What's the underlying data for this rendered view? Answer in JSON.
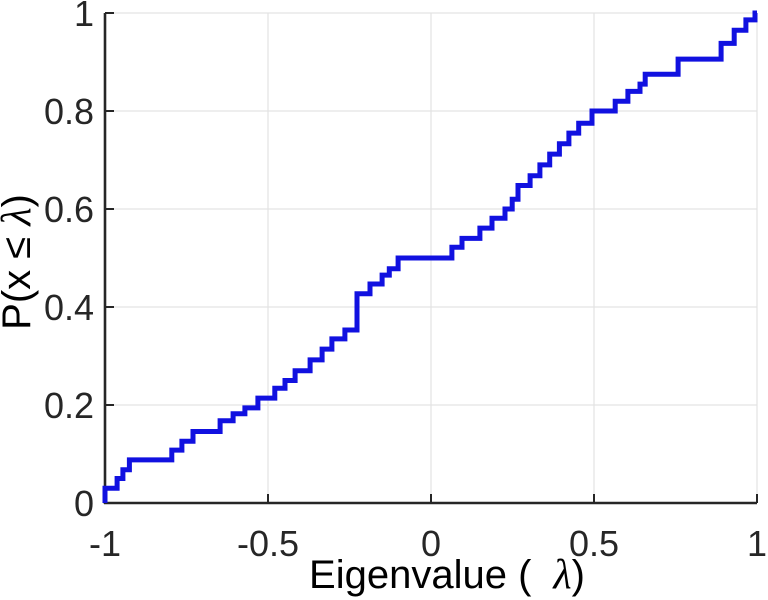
{
  "chart_data": {
    "type": "line",
    "subtype": "ecdf-step",
    "title": "",
    "xlabel": "Eigenvalue ( λ)",
    "ylabel": "P(x ≤ λ)",
    "xlabel_parts": {
      "pre": "Eigenvalue (",
      "math": "λ",
      "post": ")"
    },
    "ylabel_parts": {
      "pre": "P(x ≤ ",
      "math": "λ",
      "post": ")"
    },
    "xlim": [
      -1,
      1
    ],
    "ylim": [
      0,
      1
    ],
    "xticks": [
      -1,
      -0.5,
      0,
      0.5,
      1
    ],
    "xtick_labels": [
      "-1",
      "-0.5",
      "0",
      "0.5",
      "1"
    ],
    "yticks": [
      0,
      0.2,
      0.4,
      0.6,
      0.8,
      1
    ],
    "ytick_labels": [
      "0",
      "0.2",
      "0.4",
      "0.6",
      "0.8",
      "1"
    ],
    "grid": true,
    "legend": null,
    "line_color": "#1111e0",
    "axis_color": "#262626",
    "grid_color": "#e3e3e3",
    "points_format": "[eigenvalue, cumulative_probability_after_jump]",
    "points": [
      [
        -1.0,
        0.03
      ],
      [
        -0.963,
        0.05
      ],
      [
        -0.945,
        0.068
      ],
      [
        -0.925,
        0.088
      ],
      [
        -0.795,
        0.108
      ],
      [
        -0.764,
        0.126
      ],
      [
        -0.73,
        0.146
      ],
      [
        -0.647,
        0.168
      ],
      [
        -0.607,
        0.182
      ],
      [
        -0.571,
        0.194
      ],
      [
        -0.531,
        0.214
      ],
      [
        -0.479,
        0.234
      ],
      [
        -0.448,
        0.25
      ],
      [
        -0.417,
        0.27
      ],
      [
        -0.371,
        0.292
      ],
      [
        -0.334,
        0.314
      ],
      [
        -0.304,
        0.335
      ],
      [
        -0.264,
        0.353
      ],
      [
        -0.227,
        0.427
      ],
      [
        -0.187,
        0.447
      ],
      [
        -0.15,
        0.465
      ],
      [
        -0.128,
        0.478
      ],
      [
        -0.101,
        0.5
      ],
      [
        0.064,
        0.522
      ],
      [
        0.095,
        0.54
      ],
      [
        0.15,
        0.561
      ],
      [
        0.187,
        0.581
      ],
      [
        0.227,
        0.6
      ],
      [
        0.249,
        0.62
      ],
      [
        0.267,
        0.648
      ],
      [
        0.304,
        0.668
      ],
      [
        0.334,
        0.69
      ],
      [
        0.364,
        0.712
      ],
      [
        0.394,
        0.733
      ],
      [
        0.423,
        0.755
      ],
      [
        0.453,
        0.775
      ],
      [
        0.494,
        0.8
      ],
      [
        0.565,
        0.82
      ],
      [
        0.604,
        0.84
      ],
      [
        0.641,
        0.855
      ],
      [
        0.657,
        0.875
      ],
      [
        0.758,
        0.906
      ],
      [
        0.89,
        0.938
      ],
      [
        0.93,
        0.965
      ],
      [
        0.966,
        0.986
      ],
      [
        0.994,
        1.0
      ]
    ]
  }
}
